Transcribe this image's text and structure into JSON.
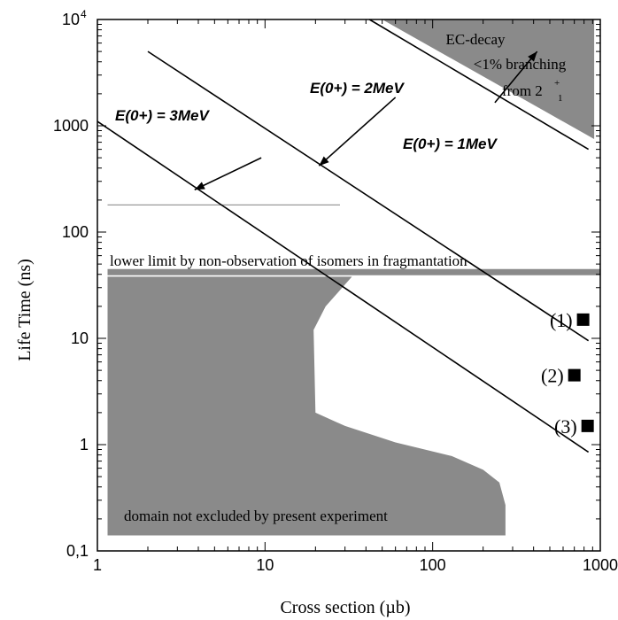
{
  "chart_data": {
    "type": "line",
    "title": "",
    "xlabel": "Cross section (µb)",
    "ylabel": "Life Time (ns)",
    "x_scale": "log",
    "y_scale": "log",
    "xlim": [
      1,
      1000
    ],
    "ylim": [
      0.1,
      10000
    ],
    "x_ticks": [
      {
        "value": 1,
        "label": "1"
      },
      {
        "value": 10,
        "label": "10"
      },
      {
        "value": 100,
        "label": "100"
      },
      {
        "value": 1000,
        "label": "1000"
      }
    ],
    "y_ticks": [
      {
        "value": 0.1,
        "label": "0,1"
      },
      {
        "value": 1,
        "label": "1"
      },
      {
        "value": 10,
        "label": "10"
      },
      {
        "value": 100,
        "label": "100"
      },
      {
        "value": 1000,
        "label": "1000"
      },
      {
        "value": 10000,
        "label": "10",
        "sup": "4"
      }
    ],
    "grid": false,
    "colors": {
      "region_fill": "#8a8a8a",
      "line": "#000000",
      "thin_line": "#999999"
    },
    "series": [
      {
        "name": "E(0+) = 3MeV",
        "x": [
          1,
          850
        ],
        "y": [
          1100,
          0.85
        ]
      },
      {
        "name": "E(0+) = 2MeV",
        "x": [
          2,
          850
        ],
        "y": [
          5000,
          9.5
        ]
      },
      {
        "name": "E(0+) = 1MeV",
        "x": [
          20,
          850
        ],
        "y": [
          20000,
          600
        ]
      }
    ],
    "points": [
      {
        "label": "(1)",
        "x": 790,
        "y": 15
      },
      {
        "label": "(2)",
        "x": 700,
        "y": 4.5
      },
      {
        "label": "(3)",
        "x": 840,
        "y": 1.5
      }
    ],
    "regions": [
      {
        "label": "domain not excluded by present experiment",
        "polygon": [
          [
            1.15,
            38
          ],
          [
            33,
            38
          ],
          [
            23,
            20
          ],
          [
            19.5,
            12
          ],
          [
            20,
            2
          ],
          [
            30,
            1.5
          ],
          [
            60,
            1.05
          ],
          [
            130,
            0.78
          ],
          [
            200,
            0.58
          ],
          [
            250,
            0.44
          ],
          [
            272,
            0.27
          ],
          [
            272,
            0.14
          ],
          [
            1.15,
            0.14
          ]
        ]
      },
      {
        "label": "EC-decay <1% branching from 2+1",
        "label_lines": [
          "EC-decay",
          "<1% branching",
          "from 2",
          "+",
          "1"
        ],
        "polygon": [
          [
            50,
            10000
          ],
          [
            920,
            10000
          ],
          [
            920,
            750
          ]
        ]
      }
    ],
    "reference_lines": [
      {
        "label": "lower limit by non-observation of isomers in fragmantation",
        "y": 42,
        "x_range": [
          1.15,
          1000
        ]
      },
      {
        "label": "",
        "y": 180,
        "x_range": [
          1.15,
          28
        ]
      }
    ],
    "annotations": [
      {
        "text": "E(0+) = 3MeV",
        "arrow_from": [
          9.5,
          500
        ],
        "arrow_to": [
          3.8,
          250
        ]
      },
      {
        "text": "E(0+) = 2MeV",
        "arrow_from": [
          60,
          1850
        ],
        "arrow_to": [
          21,
          420
        ]
      },
      {
        "text": "E(0+) = 1MeV",
        "arrow_from": [
          235,
          1650
        ],
        "arrow_to": [
          420,
          5000
        ]
      }
    ]
  }
}
